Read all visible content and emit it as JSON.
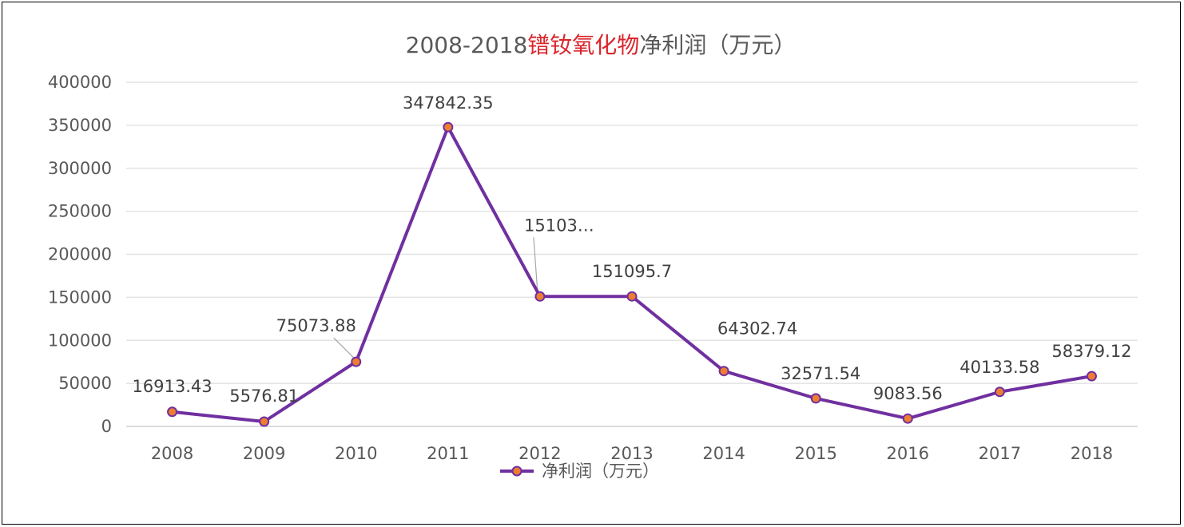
{
  "chart_data": {
    "type": "line",
    "title_parts": [
      {
        "text": "2008-2018",
        "color": "#595959"
      },
      {
        "text": "镨钕氧化物",
        "color": "#d9262c"
      },
      {
        "text": "净利润（万元）",
        "color": "#595959"
      }
    ],
    "categories": [
      "2008",
      "2009",
      "2010",
      "2011",
      "2012",
      "2013",
      "2014",
      "2015",
      "2016",
      "2017",
      "2018"
    ],
    "series": [
      {
        "name": "净利润（万元）",
        "color": "#7030a0",
        "marker_color": "#ed7d31",
        "values": [
          16913.43,
          5576.81,
          75073.88,
          347842.35,
          151031,
          151095.7,
          64302.74,
          32571.54,
          9083.56,
          40133.58,
          58379.12
        ],
        "labels": [
          "16913.43",
          "5576.81",
          "75073.88",
          "347842.35",
          "15103…",
          "151095.7",
          "64302.74",
          "32571.54",
          "9083.56",
          "40133.58",
          "58379.12"
        ]
      }
    ],
    "y_ticks": [
      "0",
      "50000",
      "100000",
      "150000",
      "200000",
      "250000",
      "300000",
      "350000",
      "400000"
    ],
    "ylim": [
      0,
      400000
    ],
    "grid": true,
    "legend_position": "bottom"
  }
}
